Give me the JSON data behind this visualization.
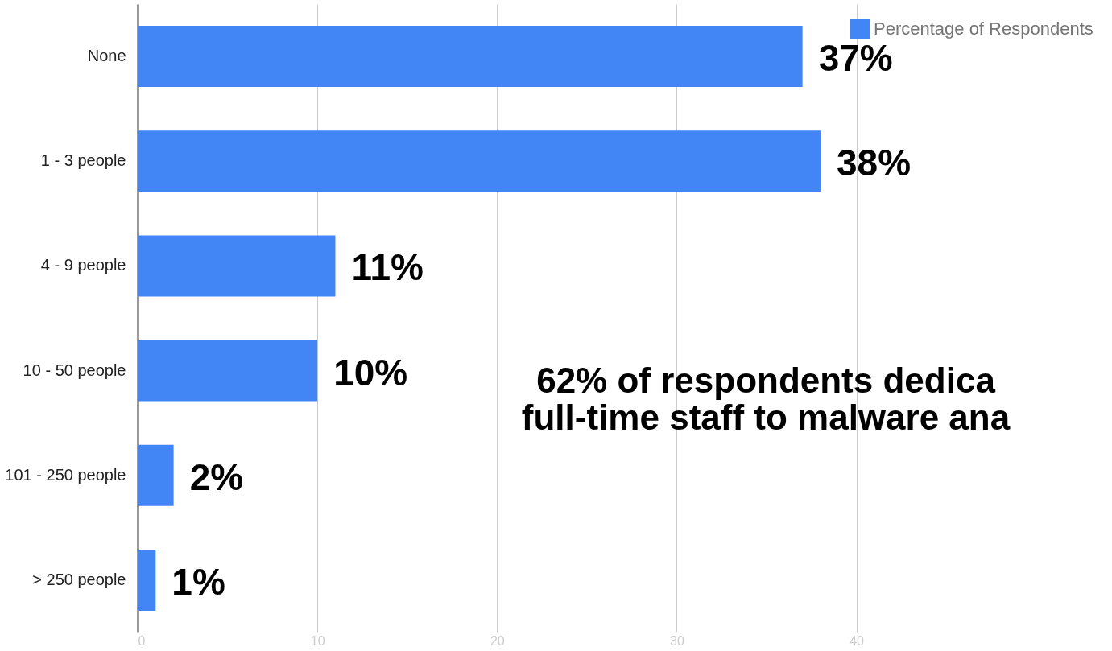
{
  "chart_data": {
    "type": "bar",
    "orientation": "horizontal",
    "categories": [
      "None",
      "1 - 3 people",
      "4 - 9 people",
      "10 - 50 people",
      "101 - 250 people",
      "> 250 people"
    ],
    "series": [
      {
        "name": "Percentage of Respondents",
        "color": "#4285f4",
        "values": [
          37,
          38,
          11,
          10,
          2,
          1
        ]
      }
    ],
    "value_labels": [
      "37%",
      "38%",
      "11%",
      "10%",
      "2%",
      "1%"
    ],
    "xlim": [
      0,
      54
    ],
    "xticks": [
      0,
      10,
      20,
      30,
      40
    ],
    "grid": "x",
    "legend": "top right",
    "annotations": [
      "62% of respondents dedica\nfull-time staff to malware ana"
    ]
  }
}
